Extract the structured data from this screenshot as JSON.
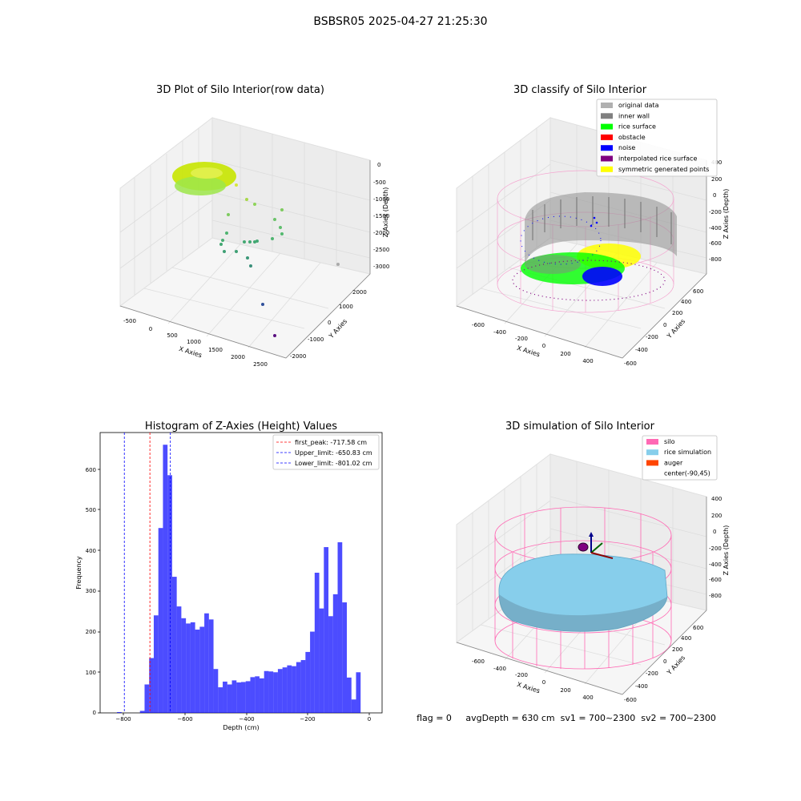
{
  "suptitle": "BSBSR05 2025-04-27 21:25:30",
  "panels": {
    "raw": {
      "title": "3D Plot of Silo Interior(row data)",
      "xlabel": "X Axies",
      "ylabel": "Y Axies",
      "zlabel": "Z Axies (Depth)",
      "xticks": [
        "-500",
        "0",
        "500",
        "1000",
        "1500",
        "2000",
        "2500"
      ],
      "yticks": [
        "-2000",
        "-1000",
        "0",
        "1000",
        "2000"
      ],
      "zticks": [
        "0",
        "-500",
        "-1000",
        "-1500",
        "-2000",
        "-2500",
        "-3000"
      ]
    },
    "classify": {
      "title": "3D classify of Silo Interior",
      "xlabel": "X Axies",
      "ylabel": "Y Axies",
      "zlabel": "Z Axies (Depth)",
      "xticks": [
        "-600",
        "-400",
        "-200",
        "0",
        "200",
        "400"
      ],
      "yticks": [
        "-600",
        "-400",
        "-200",
        "0",
        "200",
        "400",
        "600"
      ],
      "zticks": [
        "400",
        "200",
        "0",
        "-200",
        "-400",
        "-600",
        "-800"
      ],
      "legend": [
        {
          "label": "original data",
          "color": "#b0b0b0"
        },
        {
          "label": "inner wall",
          "color": "#808080"
        },
        {
          "label": "rice surface",
          "color": "#00ff00"
        },
        {
          "label": "obstacle",
          "color": "#ff0000"
        },
        {
          "label": "noise",
          "color": "#0000ff"
        },
        {
          "label": "interpolated rice surface",
          "color": "#800080"
        },
        {
          "label": "symmetric generated points",
          "color": "#ffff00"
        }
      ]
    },
    "hist": {
      "title": "Histogram of Z-Axies (Height) Values",
      "xlabel": "Depth (cm)",
      "ylabel": "Frequency",
      "xticks": [
        "−800",
        "−600",
        "−400",
        "−200",
        "0"
      ],
      "yticks": [
        "0",
        "100",
        "200",
        "300",
        "400",
        "500",
        "600"
      ],
      "legend": [
        {
          "label": "first_peak: -717.58 cm",
          "color": "#ff0000"
        },
        {
          "label": "Upper_limit: -650.83 cm",
          "color": "#0000ff"
        },
        {
          "label": "Lower_limit: -801.02 cm",
          "color": "#0000ff"
        }
      ]
    },
    "sim": {
      "title": "3D simulation of Silo Interior",
      "xlabel": "X Axies",
      "ylabel": "Y Axies",
      "zlabel": "Z Axies (Depth)",
      "xticks": [
        "-600",
        "-400",
        "-200",
        "0",
        "200",
        "400"
      ],
      "yticks": [
        "-600",
        "-400",
        "-200",
        "0",
        "200",
        "400",
        "600"
      ],
      "zticks": [
        "400",
        "200",
        "0",
        "-200",
        "-400",
        "-600",
        "-800"
      ],
      "legend": [
        {
          "label": "silo",
          "color": "#ff69b4"
        },
        {
          "label": "rice simulation",
          "color": "#87ceeb"
        },
        {
          "label": "auger",
          "color": "#ff4500"
        },
        {
          "label": "center(-90,45)",
          "color": "#ffffff"
        }
      ]
    }
  },
  "info": "flag = 0     avgDepth = 630 cm  sv1 = 700~2300  sv2 = 700~2300",
  "chart_data": [
    {
      "type": "bar",
      "title": "Histogram of Z-Axies (Height) Values",
      "xlabel": "Depth (cm)",
      "ylabel": "Frequency",
      "xlim": [
        -880,
        40
      ],
      "ylim": [
        0,
        690
      ],
      "bin_start": -825,
      "bin_width": 15,
      "bar_color": "#0000ff",
      "values": [
        2,
        0,
        0,
        0,
        0,
        5,
        70,
        135,
        240,
        455,
        660,
        585,
        335,
        262,
        233,
        220,
        223,
        205,
        212,
        245,
        230,
        108,
        63,
        77,
        70,
        80,
        75,
        76,
        78,
        88,
        90,
        85,
        103,
        102,
        100,
        108,
        112,
        117,
        115,
        125,
        130,
        150,
        200,
        345,
        257,
        408,
        238,
        292,
        420,
        272,
        87,
        33,
        100
      ],
      "vlines": [
        {
          "x": -717.58,
          "color": "#ff0000",
          "label": "first_peak: -717.58 cm"
        },
        {
          "x": -650.83,
          "color": "#0000ff",
          "label": "Upper_limit: -650.83 cm"
        },
        {
          "x": -801.02,
          "color": "#0000ff",
          "label": "Lower_limit: -801.02 cm"
        }
      ],
      "legend_position": "upper right"
    }
  ]
}
